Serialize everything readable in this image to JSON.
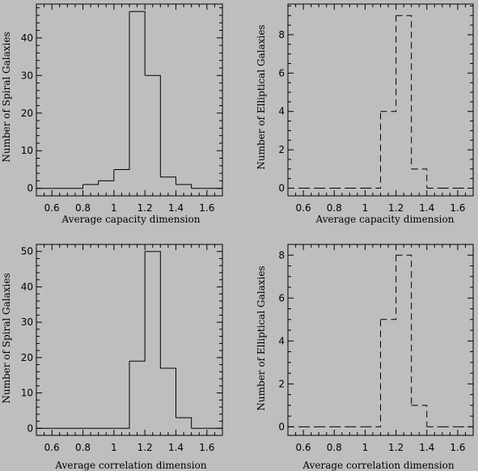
{
  "figure_background": "#bebebe",
  "chart_data": [
    {
      "type": "histogram",
      "id": "tl",
      "line_style": "solid",
      "xlabel": "Average capacity dimension",
      "ylabel": "Number of Spiral Galaxies",
      "xlim": [
        0.5,
        1.7
      ],
      "ylim": [
        -2,
        49
      ],
      "xticks": [
        0.6,
        0.8,
        1,
        1.2,
        1.4,
        1.6
      ],
      "xtick_labels": [
        "0.6",
        "0.8",
        "1",
        "1.2",
        "1.4",
        "1.6"
      ],
      "yticks": [
        0,
        10,
        20,
        30,
        40
      ],
      "ytick_labels": [
        "0",
        "10",
        "20",
        "30",
        "40"
      ],
      "x_minor": 0.05,
      "y_minor": 2,
      "bins": [
        0.5,
        0.6,
        0.7,
        0.8,
        0.9,
        1.0,
        1.1,
        1.2,
        1.3,
        1.4,
        1.5,
        1.6,
        1.7
      ],
      "values": [
        0,
        0,
        0,
        1,
        2,
        5,
        47,
        30,
        3,
        1,
        0,
        0
      ]
    },
    {
      "type": "histogram",
      "id": "tr",
      "line_style": "dashed",
      "xlabel": "Average capacity dimension",
      "ylabel": "Number of Elliptical Galaxies",
      "xlim": [
        0.5,
        1.7
      ],
      "ylim": [
        -0.4,
        9.6
      ],
      "xticks": [
        0.6,
        0.8,
        1,
        1.2,
        1.4,
        1.6
      ],
      "xtick_labels": [
        "0.6",
        "0.8",
        "1",
        "1.2",
        "1.4",
        "1.6"
      ],
      "yticks": [
        0,
        2,
        4,
        6,
        8
      ],
      "ytick_labels": [
        "0",
        "2",
        "4",
        "6",
        "8"
      ],
      "x_minor": 0.05,
      "y_minor": 0.5,
      "bins": [
        0.5,
        0.6,
        0.7,
        0.8,
        0.9,
        1.0,
        1.1,
        1.2,
        1.3,
        1.4,
        1.5,
        1.6,
        1.7
      ],
      "values": [
        0,
        0,
        0,
        0,
        0,
        0,
        4,
        9,
        1,
        0,
        0,
        0
      ]
    },
    {
      "type": "histogram",
      "id": "bl",
      "line_style": "solid",
      "xlabel": "Average correlation dimension",
      "ylabel": "Number of Spiral Galaxies",
      "xlim": [
        0.5,
        1.7
      ],
      "ylim": [
        -2,
        52
      ],
      "xticks": [
        0.6,
        0.8,
        1,
        1.2,
        1.4,
        1.6
      ],
      "xtick_labels": [
        "0.6",
        "0.8",
        "1",
        "1.2",
        "1.4",
        "1.6"
      ],
      "yticks": [
        0,
        10,
        20,
        30,
        40,
        50
      ],
      "ytick_labels": [
        "0",
        "10",
        "20",
        "30",
        "40",
        "50"
      ],
      "x_minor": 0.05,
      "y_minor": 2,
      "bins": [
        0.5,
        0.6,
        0.7,
        0.8,
        0.9,
        1.0,
        1.1,
        1.2,
        1.3,
        1.4,
        1.5,
        1.6,
        1.7
      ],
      "values": [
        0,
        0,
        0,
        0,
        0,
        0,
        19,
        50,
        17,
        3,
        0,
        0
      ]
    },
    {
      "type": "histogram",
      "id": "br",
      "line_style": "dashed",
      "xlabel": "Average correlation dimension",
      "ylabel": "Number of Elliptical Galaxies",
      "xlim": [
        0.5,
        1.7
      ],
      "ylim": [
        -0.4,
        8.5
      ],
      "xticks": [
        0.6,
        0.8,
        1,
        1.2,
        1.4,
        1.6
      ],
      "xtick_labels": [
        "0.6",
        "0.8",
        "1",
        "1.2",
        "1.4",
        "1.6"
      ],
      "yticks": [
        0,
        2,
        4,
        6,
        8
      ],
      "ytick_labels": [
        "0",
        "2",
        "4",
        "6",
        "8"
      ],
      "x_minor": 0.05,
      "y_minor": 0.5,
      "bins": [
        0.5,
        0.6,
        0.7,
        0.8,
        0.9,
        1.0,
        1.1,
        1.2,
        1.3,
        1.4,
        1.5,
        1.6,
        1.7
      ],
      "values": [
        0,
        0,
        0,
        0,
        0,
        0,
        5,
        8,
        1,
        0,
        0,
        0
      ]
    }
  ]
}
